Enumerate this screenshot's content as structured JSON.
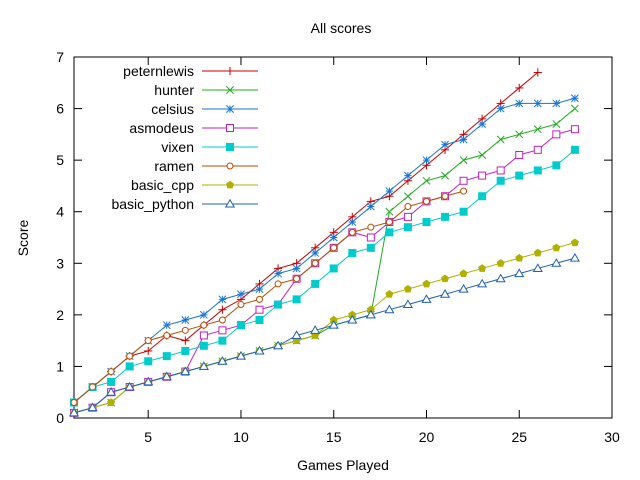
{
  "chart_data": {
    "type": "line",
    "title": "All scores",
    "xlabel": "Games Played",
    "ylabel": "Score",
    "xlim": [
      1,
      30
    ],
    "ylim": [
      0,
      7
    ],
    "xticks": [
      5,
      10,
      15,
      20,
      25,
      30
    ],
    "yticks": [
      0,
      1,
      2,
      3,
      4,
      5,
      6,
      7
    ],
    "grid": false,
    "legend": "top-left",
    "series": [
      {
        "name": "peternlewis",
        "color": "#cc0000",
        "marker": "plus",
        "x": [
          1,
          2,
          3,
          4,
          5,
          6,
          7,
          8,
          9,
          10,
          11,
          12,
          13,
          14,
          15,
          16,
          17,
          18,
          19,
          20,
          21,
          22,
          23,
          24,
          25,
          26
        ],
        "values": [
          0.3,
          0.6,
          0.9,
          1.2,
          1.3,
          1.6,
          1.5,
          1.8,
          2.1,
          2.3,
          2.6,
          2.9,
          3.0,
          3.3,
          3.6,
          3.9,
          4.2,
          4.3,
          4.6,
          4.9,
          5.2,
          5.5,
          5.8,
          6.1,
          6.4,
          6.7
        ]
      },
      {
        "name": "hunter",
        "color": "#22aa22",
        "marker": "cross",
        "x": [
          1,
          2,
          3,
          4,
          5,
          6,
          7,
          8,
          9,
          10,
          11,
          12,
          13,
          14,
          15,
          16,
          17,
          18,
          19,
          20,
          21,
          22,
          23,
          24,
          25,
          26,
          27,
          28
        ],
        "values": [
          0.1,
          0.2,
          0.3,
          0.6,
          0.7,
          0.8,
          0.9,
          1.0,
          1.1,
          1.2,
          1.3,
          1.4,
          1.5,
          1.6,
          1.8,
          1.9,
          2.0,
          4.0,
          4.3,
          4.6,
          4.7,
          5.0,
          5.1,
          5.4,
          5.5,
          5.6,
          5.7,
          6.0
        ]
      },
      {
        "name": "celsius",
        "color": "#1a75d1",
        "marker": "star",
        "x": [
          1,
          2,
          3,
          4,
          5,
          6,
          7,
          8,
          9,
          10,
          11,
          12,
          13,
          14,
          15,
          16,
          17,
          18,
          19,
          20,
          21,
          22,
          23,
          24,
          25,
          26,
          27,
          28
        ],
        "values": [
          0.3,
          0.6,
          0.9,
          1.2,
          1.5,
          1.8,
          1.9,
          2.0,
          2.3,
          2.4,
          2.5,
          2.8,
          2.9,
          3.2,
          3.5,
          3.8,
          4.1,
          4.4,
          4.7,
          5.0,
          5.3,
          5.4,
          5.7,
          6.0,
          6.1,
          6.1,
          6.1,
          6.2
        ]
      },
      {
        "name": "asmodeus",
        "color": "#c020c0",
        "marker": "square-open",
        "x": [
          1,
          2,
          3,
          4,
          5,
          6,
          7,
          8,
          9,
          10,
          11,
          12,
          13,
          14,
          15,
          16,
          17,
          18,
          19,
          20,
          21,
          22,
          23,
          24,
          25,
          26,
          27,
          28
        ],
        "values": [
          0.1,
          0.2,
          0.5,
          0.6,
          0.7,
          0.8,
          0.9,
          1.6,
          1.7,
          1.8,
          2.1,
          2.2,
          2.7,
          3.0,
          3.3,
          3.6,
          3.5,
          3.8,
          3.9,
          4.2,
          4.3,
          4.6,
          4.7,
          4.8,
          5.1,
          5.2,
          5.5,
          5.6
        ]
      },
      {
        "name": "vixen",
        "color": "#00cccc",
        "marker": "square-filled",
        "x": [
          1,
          2,
          3,
          4,
          5,
          6,
          7,
          8,
          9,
          10,
          11,
          12,
          13,
          14,
          15,
          16,
          17,
          18,
          19,
          20,
          21,
          22,
          23,
          24,
          25,
          26,
          27,
          28
        ],
        "values": [
          0.3,
          0.6,
          0.7,
          1.0,
          1.1,
          1.2,
          1.3,
          1.4,
          1.5,
          1.8,
          1.9,
          2.2,
          2.3,
          2.6,
          2.9,
          3.2,
          3.3,
          3.6,
          3.7,
          3.8,
          3.9,
          4.0,
          4.3,
          4.6,
          4.7,
          4.8,
          4.9,
          5.2
        ]
      },
      {
        "name": "ramen",
        "color": "#b84b00",
        "marker": "circle-open",
        "x": [
          1,
          2,
          3,
          4,
          5,
          6,
          7,
          8,
          9,
          10,
          11,
          12,
          13,
          14,
          15,
          16,
          17,
          18,
          19,
          20,
          21,
          22
        ],
        "values": [
          0.3,
          0.6,
          0.9,
          1.2,
          1.5,
          1.6,
          1.7,
          1.8,
          1.9,
          2.2,
          2.3,
          2.6,
          2.7,
          3.0,
          3.3,
          3.6,
          3.7,
          3.8,
          4.1,
          4.2,
          4.3,
          4.4
        ]
      },
      {
        "name": "basic_cpp",
        "color": "#b0b000",
        "marker": "pentagon-filled",
        "x": [
          1,
          2,
          3,
          4,
          5,
          6,
          7,
          8,
          9,
          10,
          11,
          12,
          13,
          14,
          15,
          16,
          17,
          18,
          19,
          20,
          21,
          22,
          23,
          24,
          25,
          26,
          27,
          28
        ],
        "values": [
          0.1,
          0.2,
          0.3,
          0.6,
          0.7,
          0.8,
          0.9,
          1.0,
          1.1,
          1.2,
          1.3,
          1.4,
          1.5,
          1.6,
          1.9,
          2.0,
          2.1,
          2.4,
          2.5,
          2.6,
          2.7,
          2.8,
          2.9,
          3.0,
          3.1,
          3.2,
          3.3,
          3.4
        ]
      },
      {
        "name": "basic_python",
        "color": "#2060b0",
        "marker": "triangle-open",
        "x": [
          1,
          2,
          3,
          4,
          5,
          6,
          7,
          8,
          9,
          10,
          11,
          12,
          13,
          14,
          15,
          16,
          17,
          18,
          19,
          20,
          21,
          22,
          23,
          24,
          25,
          26,
          27,
          28
        ],
        "values": [
          0.1,
          0.2,
          0.5,
          0.6,
          0.7,
          0.8,
          0.9,
          1.0,
          1.1,
          1.2,
          1.3,
          1.4,
          1.6,
          1.7,
          1.8,
          1.9,
          2.0,
          2.1,
          2.2,
          2.3,
          2.4,
          2.5,
          2.6,
          2.7,
          2.8,
          2.9,
          3.0,
          3.1
        ]
      }
    ]
  }
}
